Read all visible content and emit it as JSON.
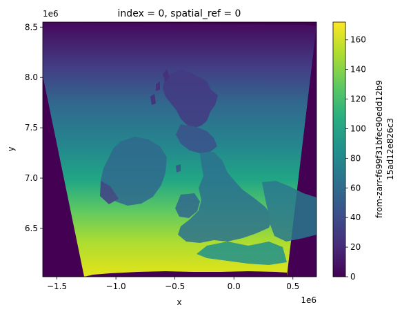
{
  "chart_data": {
    "type": "heatmap",
    "title": "index = 0, spatial_ref = 0",
    "xlabel": "x",
    "ylabel": "y",
    "x_offset_label": "1e6",
    "y_offset_label": "1e6",
    "xlim": [
      -1.62,
      0.7
    ],
    "ylim": [
      6.02,
      8.55
    ],
    "xticks": [
      -1.5,
      -1.0,
      -0.5,
      0.0,
      0.5
    ],
    "xtick_labels": [
      "−1.5",
      "−1.0",
      "−0.5",
      "0.0",
      "0.5"
    ],
    "yticks": [
      6.5,
      7.0,
      7.5,
      8.0,
      8.5
    ],
    "ytick_labels": [
      "6.5",
      "7.0",
      "7.5",
      "8.0",
      "8.5"
    ],
    "colorbar": {
      "label_line1": "from-zarr-f699f31bfec90edd12b9",
      "label_line2": "15ad12e826c3",
      "colormap": "viridis",
      "range": [
        0,
        172
      ],
      "ticks": [
        0,
        20,
        40,
        60,
        80,
        100,
        120,
        140,
        160
      ],
      "tick_labels": [
        "0",
        "20",
        "40",
        "60",
        "80",
        "100",
        "120",
        "140",
        "160"
      ]
    },
    "grid": false,
    "description_values": {
      "north_value_approx": 15,
      "south_value_approx": 165,
      "no_data_value": 0
    }
  }
}
